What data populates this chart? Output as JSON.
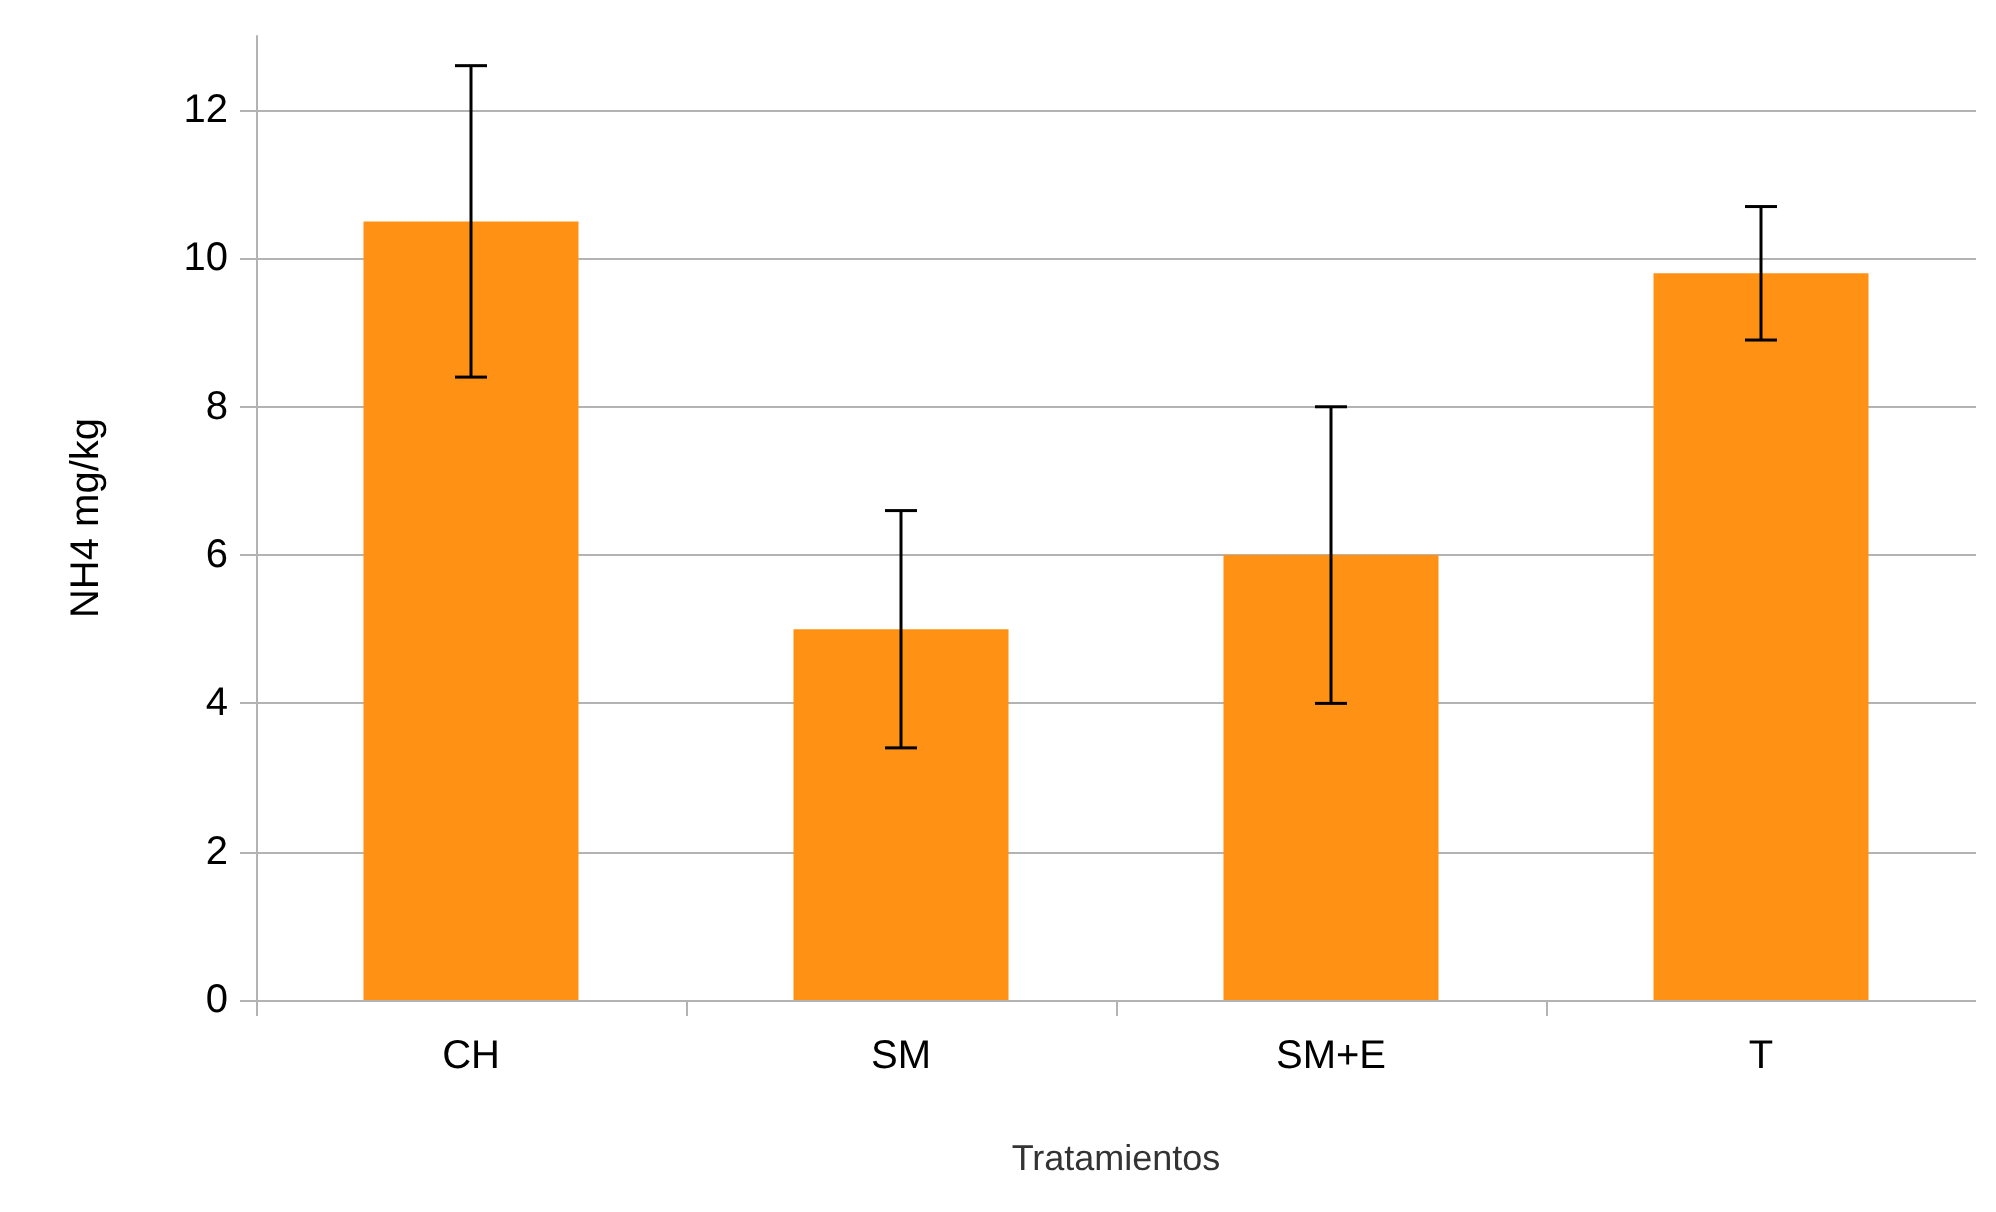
{
  "chart_data": {
    "type": "bar",
    "xlabel": "Tratamientos",
    "ylabel": "NH4 mg/kg",
    "categories": [
      "CH",
      "SM",
      "SM+E",
      "T"
    ],
    "values": [
      10.5,
      5.0,
      6.0,
      9.8
    ],
    "errors": [
      2.1,
      1.6,
      2.0,
      0.9
    ],
    "color": "#ff9214",
    "ylim": [
      0,
      13
    ],
    "yticks": [
      0,
      2,
      4,
      6,
      8,
      10,
      12
    ],
    "grid": "y"
  }
}
